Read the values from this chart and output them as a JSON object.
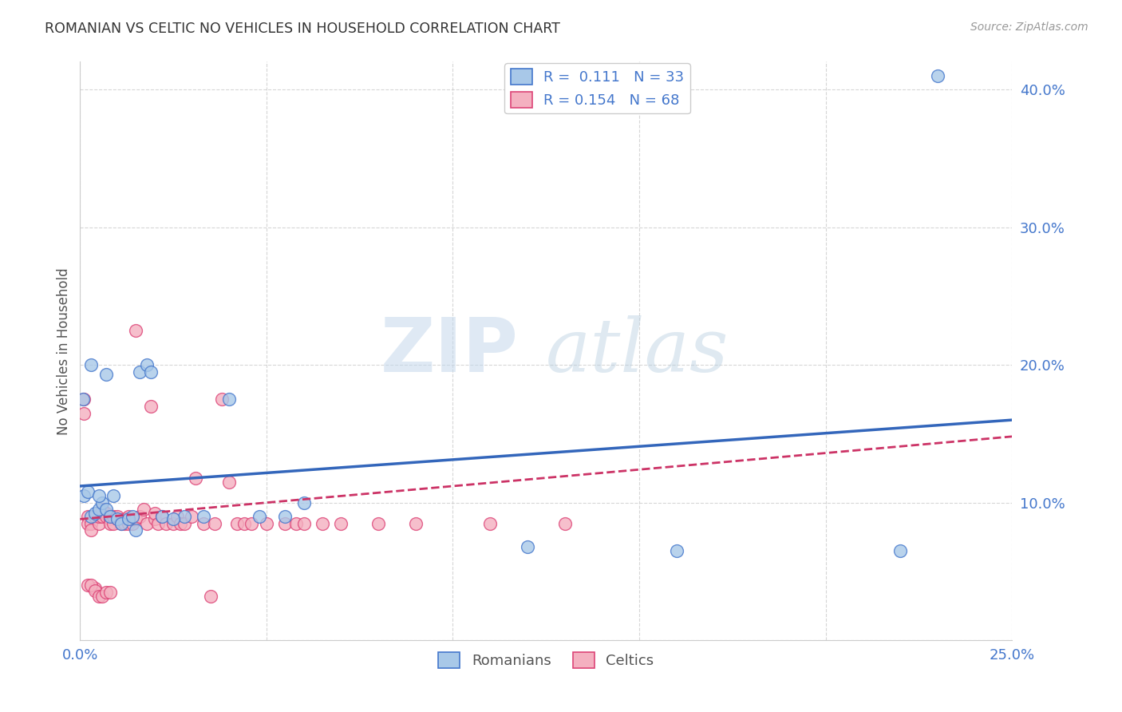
{
  "title": "ROMANIAN VS CELTIC NO VEHICLES IN HOUSEHOLD CORRELATION CHART",
  "source": "Source: ZipAtlas.com",
  "ylabel": "No Vehicles in Household",
  "xlim": [
    0.0,
    0.25
  ],
  "ylim": [
    0.0,
    0.42
  ],
  "background_color": "#ffffff",
  "grid_color": "#cccccc",
  "legend_R1": "0.111",
  "legend_N1": "33",
  "legend_R2": "0.154",
  "legend_N2": "68",
  "romanian_color": "#a8c8e8",
  "celtic_color": "#f4b0c0",
  "romanian_edge_color": "#4477cc",
  "celtic_edge_color": "#dd4477",
  "romanian_line_color": "#3366bb",
  "celtic_line_color": "#cc3366",
  "label_color": "#4477cc",
  "romanian_x": [
    0.0008,
    0.001,
    0.002,
    0.003,
    0.004,
    0.005,
    0.006,
    0.007,
    0.008,
    0.009,
    0.01,
    0.011,
    0.013,
    0.014,
    0.016,
    0.018,
    0.019,
    0.022,
    0.028,
    0.033,
    0.04,
    0.048,
    0.055,
    0.06,
    0.12,
    0.16,
    0.22,
    0.23,
    0.003,
    0.005,
    0.007,
    0.015,
    0.025
  ],
  "romanian_y": [
    0.175,
    0.105,
    0.108,
    0.09,
    0.092,
    0.095,
    0.1,
    0.095,
    0.09,
    0.105,
    0.088,
    0.085,
    0.088,
    0.09,
    0.195,
    0.2,
    0.195,
    0.09,
    0.09,
    0.09,
    0.175,
    0.09,
    0.09,
    0.1,
    0.068,
    0.065,
    0.065,
    0.41,
    0.2,
    0.105,
    0.193,
    0.08,
    0.088
  ],
  "celtic_x": [
    0.001,
    0.001,
    0.002,
    0.002,
    0.003,
    0.003,
    0.004,
    0.004,
    0.005,
    0.005,
    0.006,
    0.006,
    0.007,
    0.007,
    0.008,
    0.008,
    0.009,
    0.009,
    0.01,
    0.01,
    0.011,
    0.012,
    0.012,
    0.013,
    0.013,
    0.014,
    0.015,
    0.015,
    0.016,
    0.017,
    0.018,
    0.019,
    0.02,
    0.02,
    0.021,
    0.022,
    0.023,
    0.025,
    0.026,
    0.027,
    0.028,
    0.03,
    0.031,
    0.033,
    0.035,
    0.036,
    0.038,
    0.04,
    0.042,
    0.044,
    0.046,
    0.05,
    0.055,
    0.058,
    0.06,
    0.065,
    0.07,
    0.08,
    0.09,
    0.11,
    0.13,
    0.002,
    0.003,
    0.004,
    0.005,
    0.006,
    0.007,
    0.008
  ],
  "celtic_y": [
    0.175,
    0.165,
    0.09,
    0.085,
    0.085,
    0.08,
    0.09,
    0.038,
    0.085,
    0.09,
    0.09,
    0.095,
    0.092,
    0.09,
    0.088,
    0.085,
    0.085,
    0.09,
    0.088,
    0.09,
    0.085,
    0.088,
    0.085,
    0.085,
    0.09,
    0.085,
    0.225,
    0.088,
    0.09,
    0.095,
    0.085,
    0.17,
    0.088,
    0.092,
    0.085,
    0.09,
    0.085,
    0.085,
    0.09,
    0.085,
    0.085,
    0.09,
    0.118,
    0.085,
    0.032,
    0.085,
    0.175,
    0.115,
    0.085,
    0.085,
    0.085,
    0.085,
    0.085,
    0.085,
    0.085,
    0.085,
    0.085,
    0.085,
    0.085,
    0.085,
    0.085,
    0.04,
    0.04,
    0.036,
    0.032,
    0.032,
    0.035,
    0.035
  ],
  "rom_line_x0": 0.0,
  "rom_line_y0": 0.112,
  "rom_line_x1": 0.25,
  "rom_line_y1": 0.16,
  "cel_line_x0": 0.0,
  "cel_line_y0": 0.088,
  "cel_line_x1": 0.25,
  "cel_line_y1": 0.148
}
